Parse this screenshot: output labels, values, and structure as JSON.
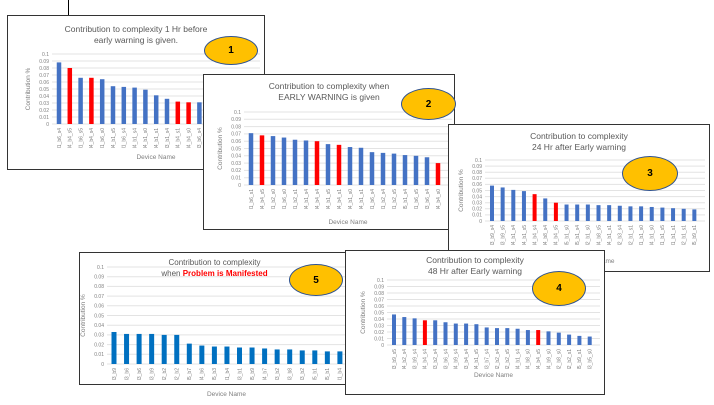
{
  "chart_data": [
    {
      "id": "p1",
      "type": "bar",
      "badge": "1",
      "title_lines": [
        "Contribution to complexity 1 Hr before",
        "early warning is given."
      ],
      "xlabel": "Device Name",
      "ylabel": "Contribution %",
      "ylim": [
        0,
        0.1
      ],
      "yticks": [
        "0",
        "0.01",
        "0.02",
        "0.03",
        "0.04",
        "0.05",
        "0.06",
        "0.07",
        "0.08",
        "0.09",
        "0.1"
      ],
      "grid": true,
      "colors": {
        "normal": "#4472c4",
        "highlight": "#ff0000"
      },
      "categories": [
        "l1_b6_s4",
        "l4_b4_s5",
        "l1_b6_s5",
        "l4_b4_s4",
        "l1_b6_s0",
        "l4_b1_s5",
        "l1_b6_s4",
        "l4_b1_s4",
        "l4_b1_s0",
        "l4_b1_s1",
        "l3_b1_s4",
        "l4_b4_s1",
        "l4_b4_s0",
        "l3_b6_s4"
      ],
      "values": [
        0.088,
        0.08,
        0.066,
        0.066,
        0.064,
        0.054,
        0.053,
        0.052,
        0.049,
        0.041,
        0.036,
        0.032,
        0.031,
        0.031
      ],
      "highlighted": [
        1,
        3,
        11,
        12
      ]
    },
    {
      "id": "p2",
      "type": "bar",
      "badge": "2",
      "title_lines": [
        "Contribution to complexity when",
        "EARLY WARNING is given"
      ],
      "xlabel": "Device Name",
      "ylabel": "Contribution %",
      "ylim": [
        0,
        0.1
      ],
      "yticks": [
        "0",
        "0.01",
        "0.02",
        "0.03",
        "0.04",
        "0.05",
        "0.06",
        "0.07",
        "0.08",
        "0.09",
        "0.1"
      ],
      "grid": true,
      "colors": {
        "normal": "#4472c4",
        "highlight": "#ff0000"
      },
      "categories": [
        "l1_b6_s1",
        "l4_b4_s5",
        "l1_b2_s0",
        "l1_b6_s0",
        "l1_b2_s1",
        "l4_b1_s4",
        "l4_b4_s4",
        "l4_b1_s5",
        "l4_b4_s1",
        "l4_b1_s0",
        "l4_b1_s1",
        "l1_b6_s4",
        "l1_b2_s4",
        "l1_b2_s5",
        "l5_b1_s4",
        "l1_b6_s5",
        "l3_b6_s4",
        "l4_b4_s0"
      ],
      "values": [
        0.071,
        0.068,
        0.067,
        0.065,
        0.062,
        0.061,
        0.06,
        0.056,
        0.055,
        0.052,
        0.051,
        0.045,
        0.044,
        0.043,
        0.041,
        0.04,
        0.038,
        0.03
      ],
      "highlighted": [
        1,
        6,
        8,
        17
      ]
    },
    {
      "id": "p3",
      "type": "bar",
      "badge": "3",
      "title_lines": [
        "Contribution to complexity",
        "24 Hr after Early warning"
      ],
      "xlabel": "Device Name",
      "ylabel": "Contribution %",
      "ylim": [
        0,
        0.1
      ],
      "yticks": [
        "0",
        "0.01",
        "0.02",
        "0.03",
        "0.04",
        "0.05",
        "0.06",
        "0.07",
        "0.08",
        "0.09",
        "0.1"
      ],
      "grid": true,
      "colors": {
        "normal": "#4472c4",
        "highlight": "#ff0000"
      },
      "categories": [
        "l3_b9_s4",
        "l3_b9_s5",
        "l4_b1_s4",
        "l4_b1_s5",
        "l4_b4_s4",
        "l4_b8_s4",
        "l4_b4_s5",
        "l5_b1_s0",
        "l5_b1_s4",
        "l2_b1_s0",
        "l4_b8_s5",
        "l4_b1_s1",
        "l2_b3_s4",
        "l2_b1_s1",
        "l1_b1_s0",
        "l4_b1_s0",
        "l1_b1_s5",
        "l1_b1_s1",
        "l2_b1_s1",
        "l5_b9_s1"
      ],
      "values": [
        0.058,
        0.055,
        0.051,
        0.049,
        0.044,
        0.037,
        0.03,
        0.027,
        0.027,
        0.027,
        0.026,
        0.026,
        0.025,
        0.024,
        0.024,
        0.023,
        0.022,
        0.021,
        0.02,
        0.019
      ],
      "highlighted": [
        4,
        6
      ]
    },
    {
      "id": "p5",
      "type": "bar",
      "badge": "5",
      "title_lines": [
        "Contribution to complexity",
        "when "
      ],
      "title_highlight": "Problem is Manifested",
      "xlabel": "Device Name",
      "ylabel": "Contribution %",
      "ylim": [
        0,
        0.1
      ],
      "yticks": [
        "0",
        "0.01",
        "0.02",
        "0.03",
        "0.04",
        "0.05",
        "0.06",
        "0.07",
        "0.08",
        "0.09",
        "0.1"
      ],
      "grid": true,
      "colors": {
        "normal": "#0070c0",
        "highlight": "#ff0000"
      },
      "categories": [
        "l3_b9",
        "l3_b6",
        "l3_b6",
        "l3_b9",
        "l2_b2",
        "l2_b2",
        "l5_b7",
        "l4_b6",
        "l5_b3",
        "l1_b4",
        "l3_b1",
        "l5_b9",
        "l4_b7",
        "l3_b2",
        "l3_b8",
        "l3_b2",
        "l5_b1",
        "l5_b1",
        "l1_b4"
      ],
      "values": [
        0.033,
        0.031,
        0.031,
        0.031,
        0.03,
        0.03,
        0.021,
        0.019,
        0.018,
        0.018,
        0.017,
        0.017,
        0.016,
        0.015,
        0.015,
        0.014,
        0.014,
        0.013,
        0.013
      ],
      "highlighted": []
    },
    {
      "id": "p4",
      "type": "bar",
      "badge": "4",
      "title_lines": [
        "Contribution to complexity",
        "48 Hr after Early warning"
      ],
      "xlabel": "Device Name",
      "ylabel": "Contribution %",
      "ylim": [
        0,
        0.1
      ],
      "yticks": [
        "0",
        "0.01",
        "0.02",
        "0.03",
        "0.04",
        "0.05",
        "0.06",
        "0.07",
        "0.08",
        "0.09",
        "0.1"
      ],
      "grid": true,
      "colors": {
        "normal": "#4472c4",
        "highlight": "#ff0000"
      },
      "categories": [
        "l3_b9_s5",
        "l4_b2_s4",
        "l3_b9_s4",
        "l4_b4_s4",
        "l3_b2_s4",
        "l3_b6_s4",
        "l4_b9_s4",
        "l3_b4_s4",
        "l4_b1_s5",
        "l3_b7_s4",
        "l2_b2_s4",
        "l2_b2_s5",
        "l4_b1_s4",
        "l4_b8_s0",
        "l4_b4_s5",
        "l4_b9_s0",
        "l2_b8_s0",
        "l2_b2_s1",
        "l5_b9_s1",
        "l3_b5_s0"
      ],
      "values": [
        0.047,
        0.043,
        0.041,
        0.038,
        0.038,
        0.035,
        0.033,
        0.033,
        0.032,
        0.027,
        0.026,
        0.026,
        0.025,
        0.023,
        0.023,
        0.021,
        0.019,
        0.016,
        0.014,
        0.013
      ],
      "highlighted": [
        3,
        14
      ]
    }
  ]
}
